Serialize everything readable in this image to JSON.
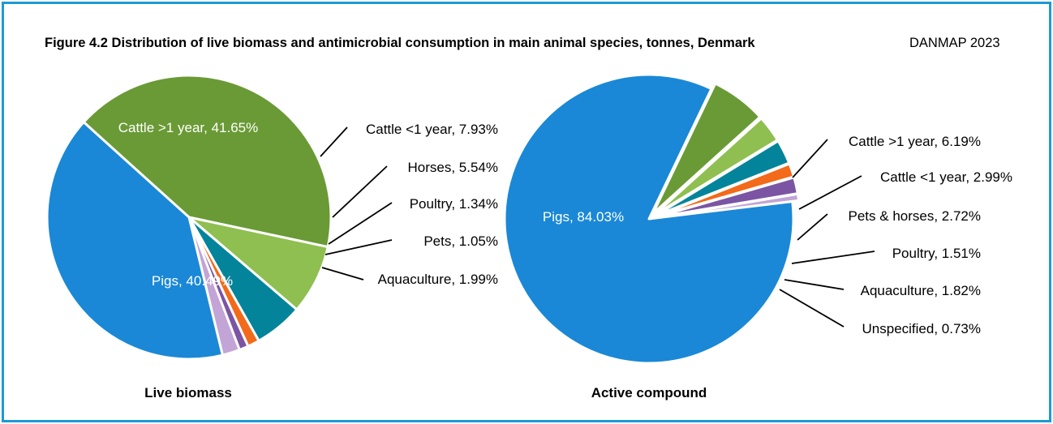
{
  "figure": {
    "title": "Figure 4.2 Distribution of live biomass and antimicrobial consumption in main animal species, tonnes, Denmark",
    "source": "DANMAP 2023"
  },
  "colors": {
    "frame": "#1e9ad6"
  },
  "chart_data": [
    {
      "type": "pie",
      "title": "Live biomass",
      "unit": "%",
      "slices": [
        {
          "label": "Cattle >1 year, 41.65%",
          "category": "Cattle >1 year",
          "value": 41.65,
          "color": "#6a9a35",
          "label_inside": true
        },
        {
          "label": "Cattle <1 year, 7.93%",
          "category": "Cattle <1 year",
          "value": 7.93,
          "color": "#8fbf50",
          "label_inside": false
        },
        {
          "label": "Horses, 5.54%",
          "category": "Horses",
          "value": 5.54,
          "color": "#04849a",
          "label_inside": false
        },
        {
          "label": "Poultry, 1.34%",
          "category": "Poultry",
          "value": 1.34,
          "color": "#f26a1a",
          "label_inside": false
        },
        {
          "label": "Pets, 1.05%",
          "category": "Pets",
          "value": 1.05,
          "color": "#7b55a3",
          "label_inside": false
        },
        {
          "label": "Aquaculture, 1.99%",
          "category": "Aquaculture",
          "value": 1.99,
          "color": "#c2a4d6",
          "label_inside": false
        },
        {
          "label": "Pigs, 40.49%",
          "category": "Pigs",
          "value": 40.49,
          "color": "#1a88d6",
          "label_inside": true
        }
      ]
    },
    {
      "type": "pie",
      "title": "Active compound",
      "unit": "%",
      "slices": [
        {
          "label": "Cattle >1 year, 6.19%",
          "category": "Cattle >1 year",
          "value": 6.19,
          "color": "#6a9a35",
          "label_inside": false
        },
        {
          "label": "Cattle <1 year, 2.99%",
          "category": "Cattle <1 year",
          "value": 2.99,
          "color": "#8fbf50",
          "label_inside": false
        },
        {
          "label": "Pets & horses, 2.72%",
          "category": "Pets & horses",
          "value": 2.72,
          "color": "#04849a",
          "label_inside": false
        },
        {
          "label": "Poultry, 1.51%",
          "category": "Poultry",
          "value": 1.51,
          "color": "#f26a1a",
          "label_inside": false
        },
        {
          "label": "Aquaculture, 1.82%",
          "category": "Aquaculture",
          "value": 1.82,
          "color": "#7b55a3",
          "label_inside": false
        },
        {
          "label": "Unspecified, 0.73%",
          "category": "Unspecified",
          "value": 0.73,
          "color": "#c2a4d6",
          "label_inside": false
        },
        {
          "label": "Pigs, 84.03%",
          "category": "Pigs",
          "value": 84.03,
          "color": "#1a88d6",
          "label_inside": true
        }
      ]
    }
  ]
}
